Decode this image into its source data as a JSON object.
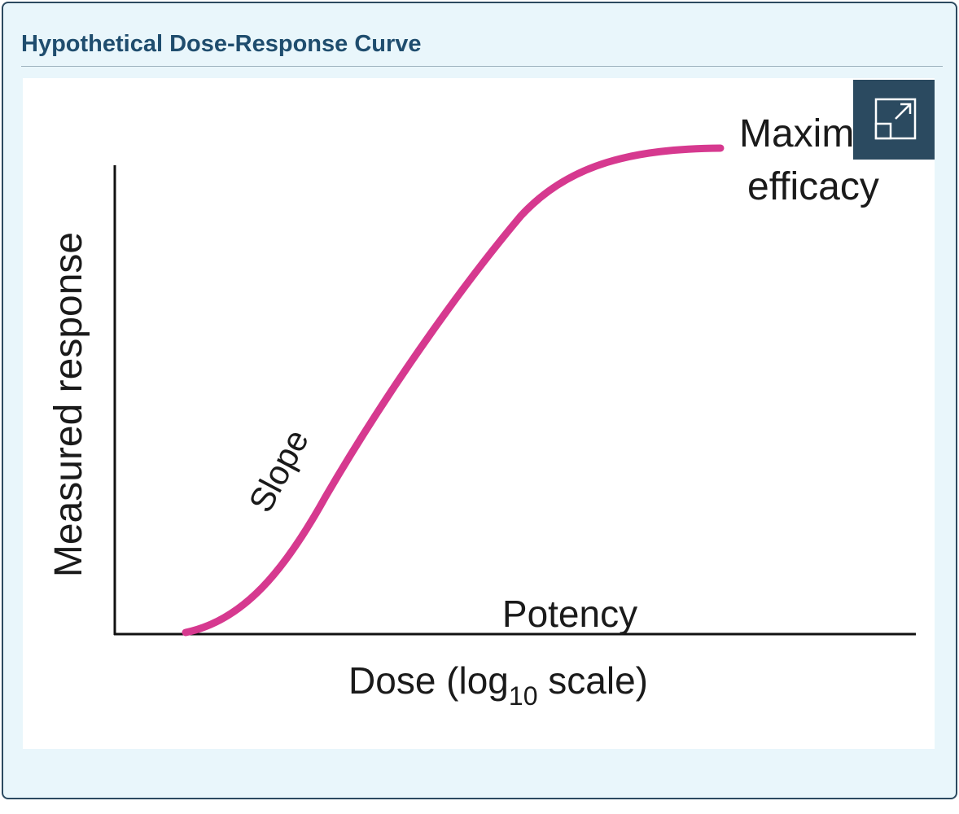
{
  "header": {
    "title": "Hypothetical Dose-Response Curve"
  },
  "figure": {
    "y_axis_label": "Measured response",
    "x_axis_label": {
      "prefix": "Dose (log",
      "subscript": "10",
      "suffix": " scale)"
    },
    "annotations": {
      "slope": "Slope",
      "potency": "Potency",
      "max_line1": "Maximal",
      "max_line2": "efficacy"
    }
  }
}
